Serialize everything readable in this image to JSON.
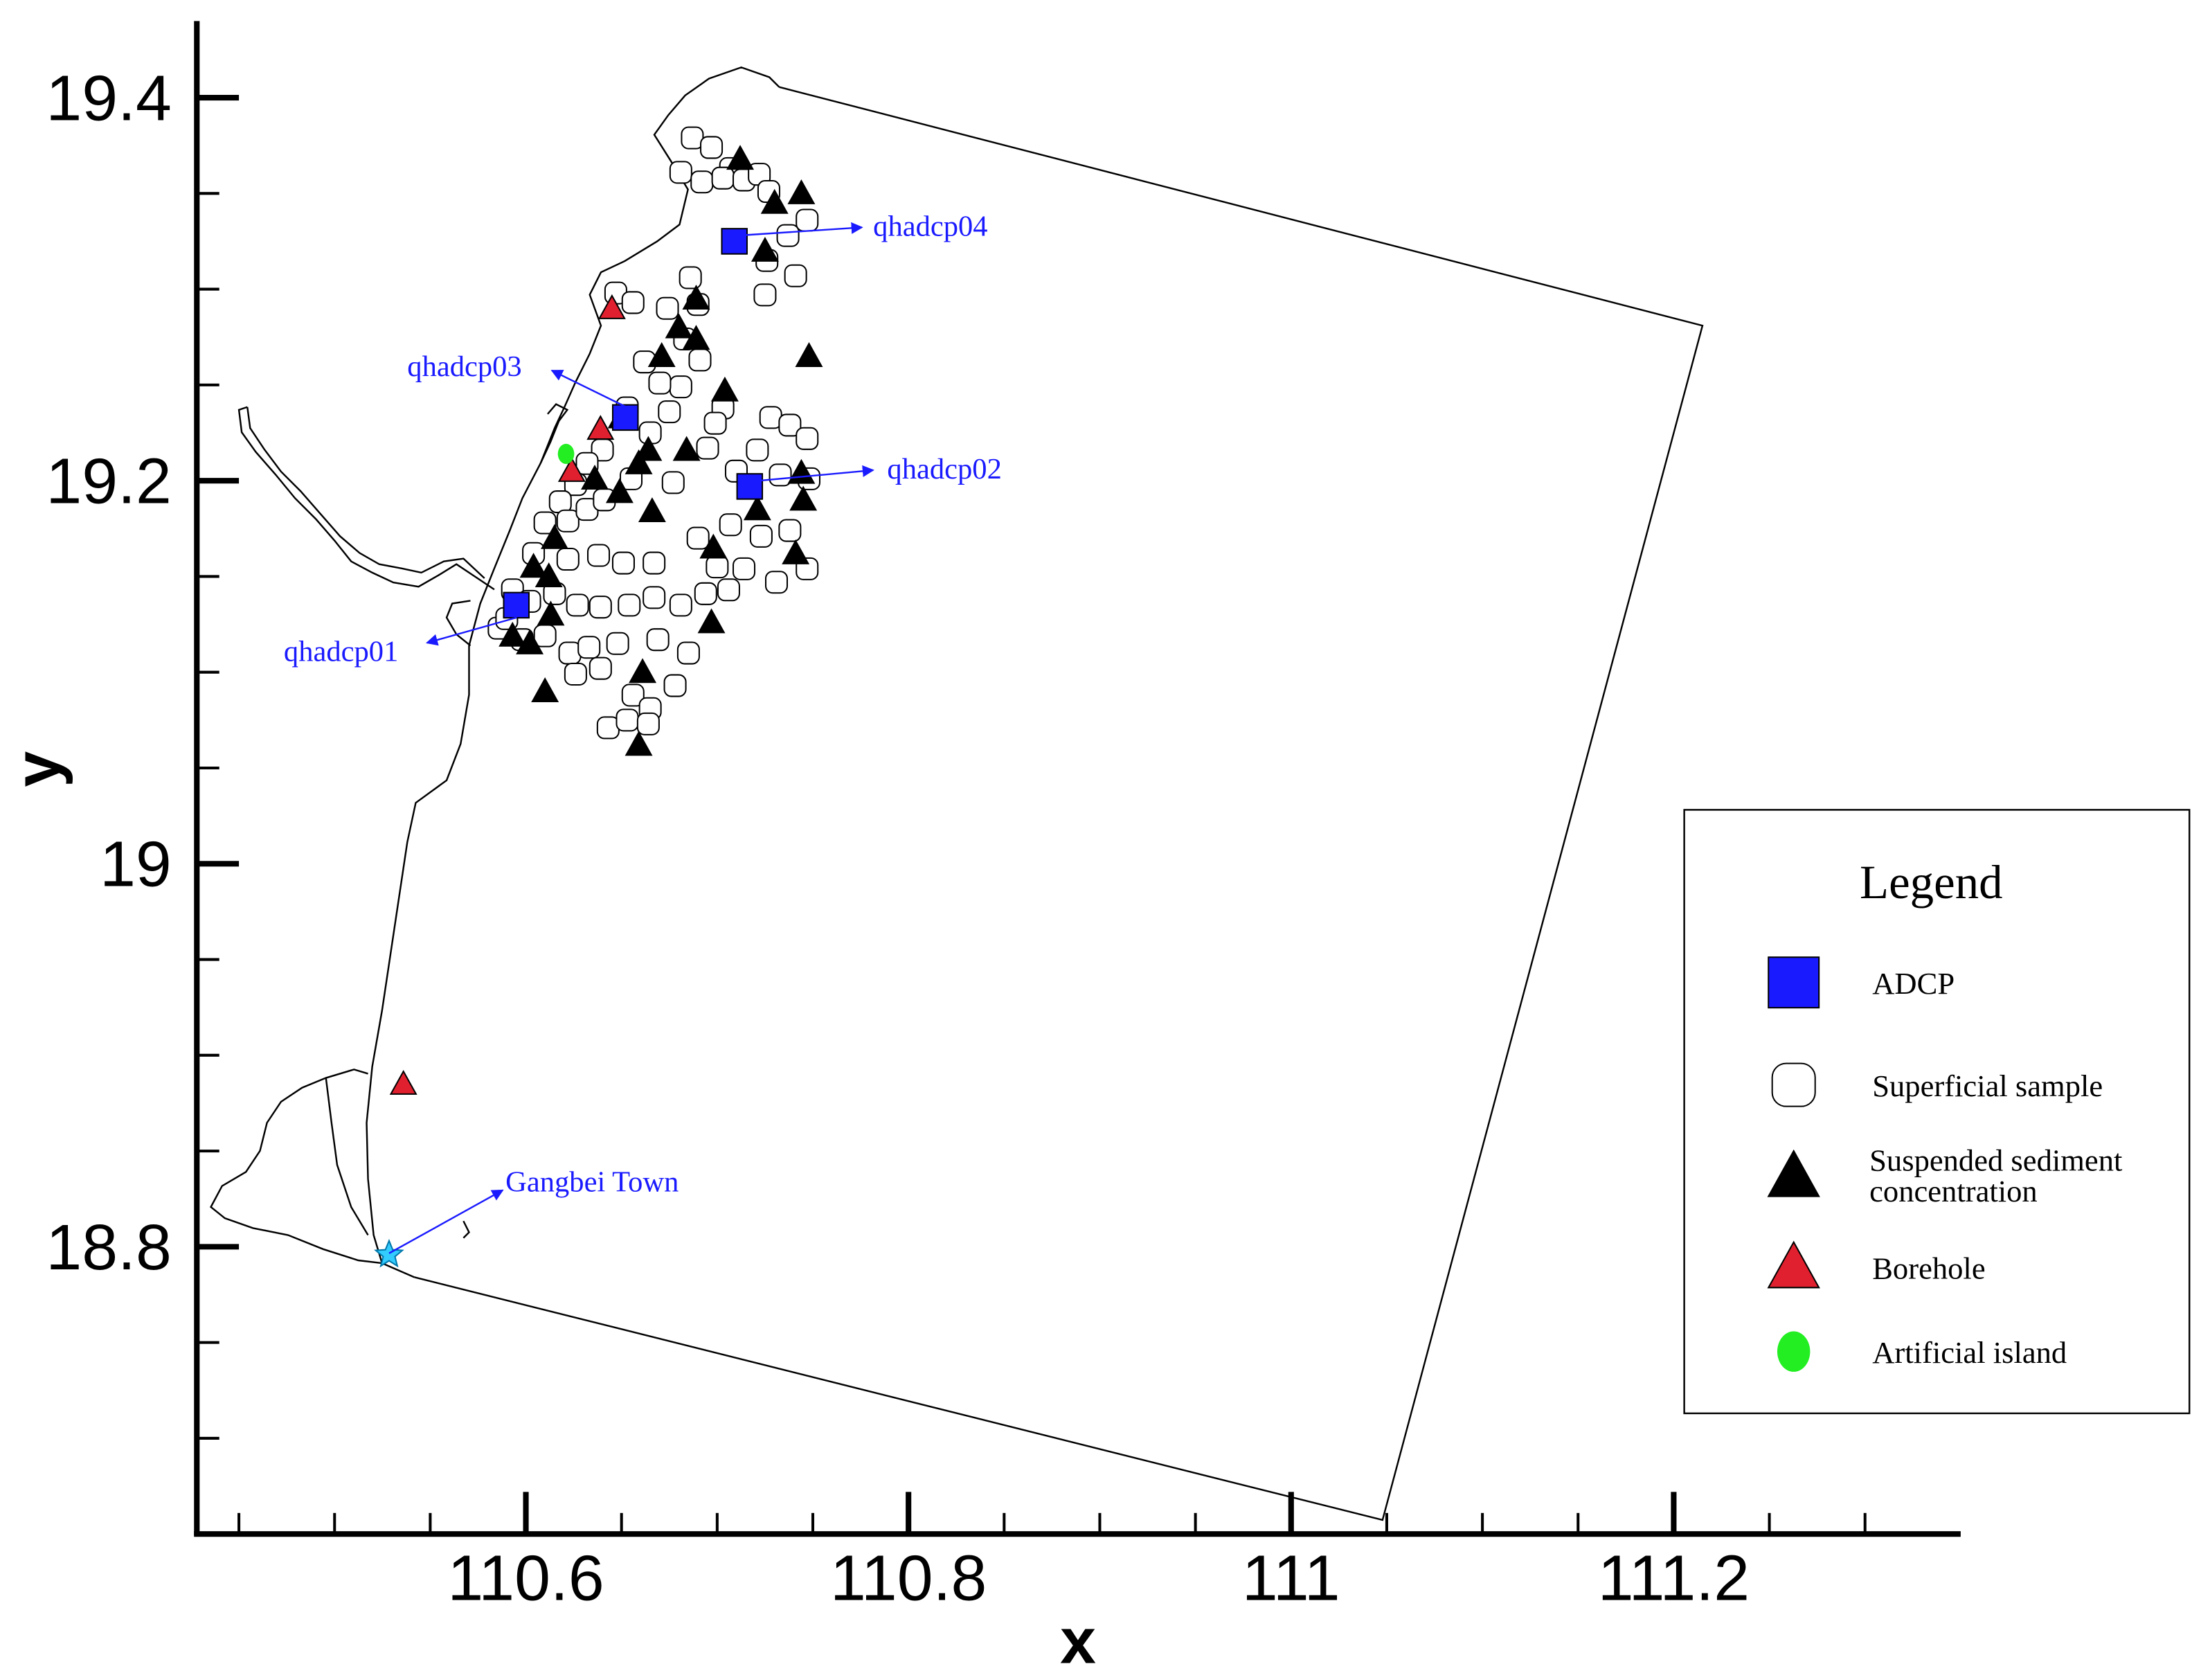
{
  "chart_data": {
    "type": "scatter",
    "xlabel": "x",
    "ylabel": "y",
    "xlim": [
      110.428,
      111.35
    ],
    "ylim": [
      18.65,
      19.44
    ],
    "xticks": [
      110.6,
      110.8,
      111,
      111.2
    ],
    "yticks": [
      18.8,
      19,
      19.2,
      19.4
    ],
    "xminorticks": [
      110.45,
      110.5,
      110.55,
      110.65,
      110.7,
      110.75,
      110.85,
      110.9,
      110.95,
      111.05,
      111.1,
      111.15,
      111.25,
      111.3
    ],
    "yminorticks": [
      18.7,
      18.75,
      18.85,
      18.9,
      18.95,
      19.05,
      19.1,
      19.15,
      19.25,
      19.3,
      19.35
    ],
    "legend_title": "Legend",
    "legend_position": "right",
    "series": [
      {
        "name": "ADCP",
        "marker": "square",
        "color": "#1a1aff",
        "x": [
          110.709,
          110.652,
          110.717,
          110.595
        ],
        "values": [
          19.325,
          19.233,
          19.197,
          19.135
        ]
      },
      {
        "name": "Superficial sample",
        "marker": "circle",
        "color": "#ffffff",
        "x": [
          110.687,
          110.697,
          110.707,
          110.681,
          110.692,
          110.703,
          110.714,
          110.722,
          110.727,
          110.747,
          110.737,
          110.726,
          110.741,
          110.725,
          110.647,
          110.656,
          110.686,
          110.69,
          110.674,
          110.683,
          110.662,
          110.691,
          110.681,
          110.67,
          110.703,
          110.699,
          110.695,
          110.653,
          110.675,
          110.665,
          110.728,
          110.738,
          110.747,
          110.721,
          110.71,
          110.733,
          110.748,
          110.677,
          110.655,
          110.64,
          110.632,
          110.626,
          110.618,
          110.61,
          110.622,
          110.632,
          110.641,
          110.69,
          110.707,
          110.723,
          110.738,
          110.7,
          110.714,
          110.731,
          110.747,
          110.667,
          110.651,
          110.638,
          110.622,
          110.604,
          110.593,
          110.602,
          110.615,
          110.627,
          110.639,
          110.654,
          110.667,
          110.681,
          110.694,
          110.706,
          110.586,
          110.61,
          110.623,
          110.633,
          110.648,
          110.669,
          110.685,
          110.626,
          110.639,
          110.656,
          110.665,
          110.678,
          110.643,
          110.653,
          110.664,
          110.598,
          110.59
        ],
        "values": [
          19.379,
          19.374,
          19.363,
          19.361,
          19.356,
          19.358,
          19.357,
          19.36,
          19.351,
          19.336,
          19.328,
          19.315,
          19.307,
          19.297,
          19.298,
          19.293,
          19.306,
          19.292,
          19.29,
          19.274,
          19.262,
          19.263,
          19.249,
          19.251,
          19.238,
          19.23,
          19.217,
          19.238,
          19.236,
          19.225,
          19.233,
          19.229,
          19.222,
          19.216,
          19.205,
          19.203,
          19.201,
          19.199,
          19.201,
          19.216,
          19.209,
          19.198,
          19.189,
          19.178,
          19.179,
          19.185,
          19.19,
          19.17,
          19.177,
          19.171,
          19.174,
          19.155,
          19.154,
          19.147,
          19.154,
          19.157,
          19.157,
          19.161,
          19.159,
          19.162,
          19.143,
          19.137,
          19.141,
          19.135,
          19.134,
          19.135,
          19.139,
          19.135,
          19.141,
          19.143,
          19.123,
          19.119,
          19.11,
          19.113,
          19.115,
          19.117,
          19.11,
          19.099,
          19.102,
          19.088,
          19.081,
          19.093,
          19.071,
          19.075,
          19.073,
          19.117,
          19.128
        ]
      },
      {
        "name": "Suspended sediment concentration",
        "marker": "triangle",
        "color": "#000000",
        "x": [
          110.712,
          110.744,
          110.725,
          110.689,
          110.68,
          110.689,
          110.671,
          110.748,
          110.704,
          110.65,
          110.664,
          110.684,
          110.659,
          110.636,
          110.649,
          110.666,
          110.721,
          110.744,
          110.698,
          110.615,
          110.604,
          110.612,
          110.741,
          110.613,
          110.593,
          110.602,
          110.661,
          110.697,
          110.61,
          110.659,
          110.73,
          110.745
        ],
        "values": [
          19.368,
          19.35,
          19.32,
          19.295,
          19.28,
          19.274,
          19.265,
          19.265,
          19.247,
          19.233,
          19.216,
          19.216,
          19.209,
          19.201,
          19.194,
          19.184,
          19.185,
          19.204,
          19.165,
          19.17,
          19.155,
          19.15,
          19.162,
          19.13,
          19.119,
          19.115,
          19.1,
          19.126,
          19.09,
          19.062,
          19.345,
          19.19
        ]
      },
      {
        "name": "Borehole",
        "marker": "triangle",
        "color": "#e0202e",
        "x": [
          110.645,
          110.639,
          110.624,
          110.536
        ],
        "values": [
          19.29,
          19.227,
          19.205,
          18.885
        ]
      },
      {
        "name": "Artificial island",
        "marker": "blob",
        "color": "#22ee22",
        "x": [
          110.621
        ],
        "values": [
          19.214
        ]
      }
    ],
    "annotations": [
      {
        "text": "qhadcp04"
      },
      {
        "text": "qhadcp03"
      },
      {
        "text": "qhadcp02"
      },
      {
        "text": "qhadcp01"
      },
      {
        "text": "Gangbei Town"
      }
    ]
  }
}
